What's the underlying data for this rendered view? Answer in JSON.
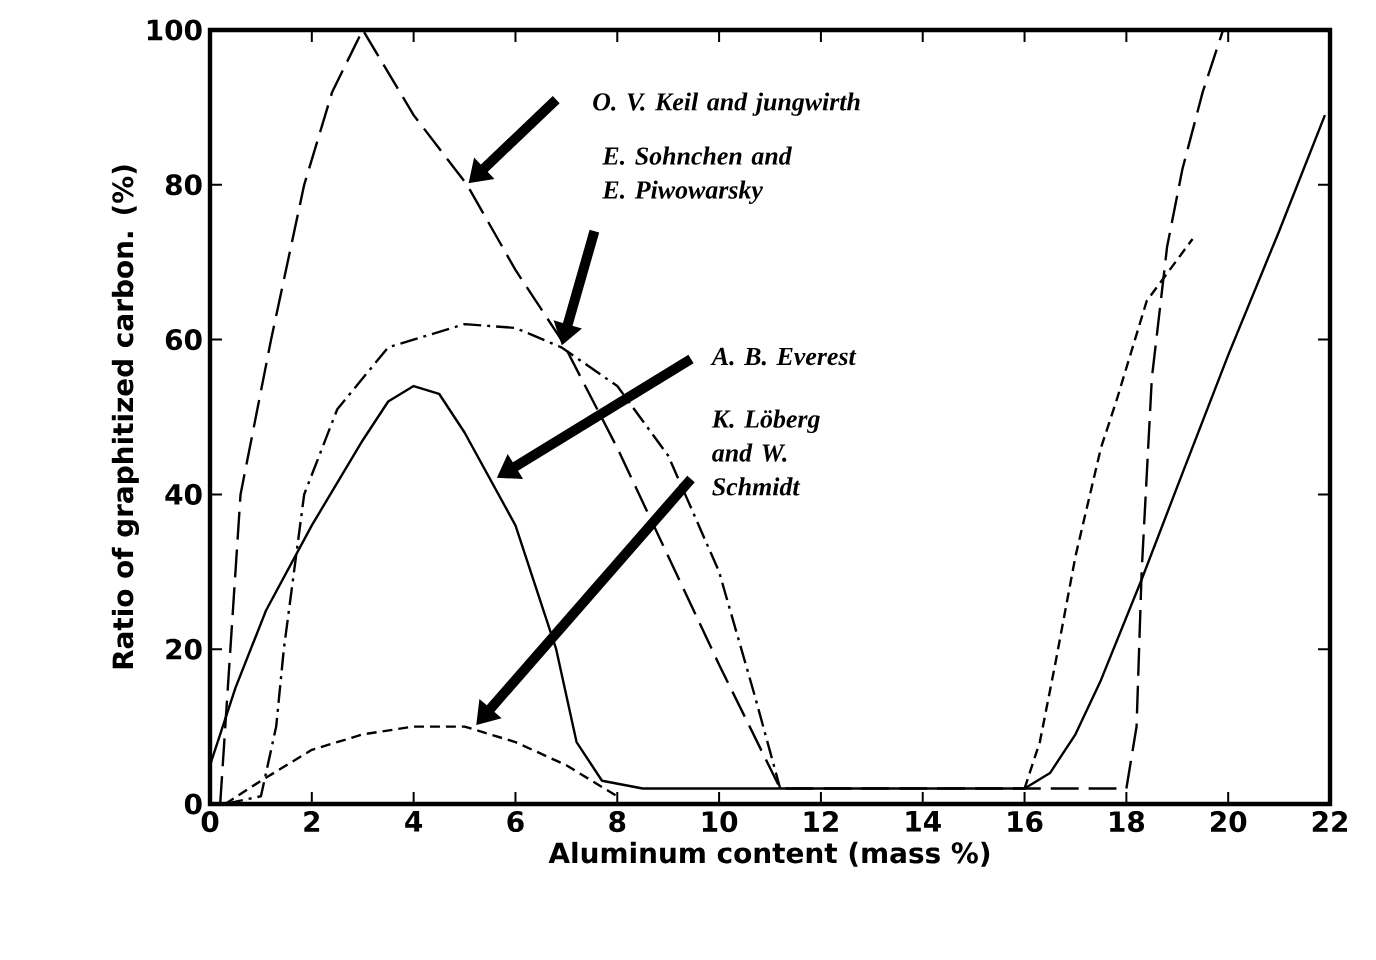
{
  "chart_data": {
    "type": "line",
    "xlabel": "Aluminum content  (mass  %)",
    "ylabel": "Ratio of graphitized carbon.  (%)",
    "xlim": [
      0,
      22
    ],
    "ylim": [
      0,
      100
    ],
    "xticks": [
      0,
      2,
      4,
      6,
      8,
      10,
      12,
      14,
      16,
      18,
      20,
      22
    ],
    "yticks": [
      0,
      20,
      40,
      60,
      80,
      100
    ],
    "grid": false,
    "legend": false,
    "annotations": [
      "O. V. Keil and jungwirth",
      "E. Sohnchen and E. Piwowarsky",
      "A. B. Everest",
      "K. Löberg and W. Schmidt"
    ],
    "series": [
      {
        "color": "#000000",
        "line_style": "dashed",
        "x": [
          0.2,
          0.6,
          1.2,
          1.85,
          2.4,
          3.0,
          4.0,
          5.05,
          6.0,
          6.9,
          8.0,
          9.0,
          10.0,
          11.2,
          14.0,
          16.0,
          18.0,
          18.2,
          18.3,
          18.5,
          18.8,
          19.1,
          19.5,
          19.9
        ],
        "values": [
          0,
          40,
          60,
          80,
          92,
          100,
          89,
          80,
          69,
          60,
          46,
          32,
          18,
          2,
          2,
          2,
          2,
          10,
          30,
          55,
          72,
          82,
          92,
          100
        ]
      },
      {
        "color": "#000000",
        "line_style": "dashdot",
        "x": [
          0.3,
          1.0,
          1.3,
          1.45,
          1.85,
          2.5,
          3.5,
          5.0,
          6.0,
          6.9,
          8.0,
          9.0,
          10.0,
          10.7,
          11.2
        ],
        "values": [
          0,
          1,
          10,
          20,
          40,
          51,
          59,
          62,
          61.5,
          59,
          54,
          45,
          30,
          14,
          2
        ]
      },
      {
        "color": "#000000",
        "line_style": "solid",
        "x": [
          0,
          0.5,
          1.1,
          2.0,
          3.0,
          3.5,
          4.0,
          4.5,
          5.0,
          6.0,
          6.8,
          7.2,
          7.7,
          8.5,
          11.0,
          16.0,
          16.5,
          17.0,
          17.5,
          18.3,
          19.0,
          20.0,
          21.0,
          21.9
        ],
        "values": [
          5,
          15,
          25,
          36,
          47,
          52,
          54,
          53,
          48,
          36,
          20,
          8,
          3,
          2,
          2,
          2,
          4,
          9,
          16,
          29,
          41,
          58,
          74,
          89
        ]
      },
      {
        "color": "#000000",
        "line_style": "dotted",
        "x": [
          0.3,
          1.0,
          2.0,
          3.0,
          4.0,
          5.0,
          6.0,
          7.0,
          8.0,
          12.0,
          16.0,
          16.3,
          16.6,
          17.0,
          17.5,
          17.8,
          18.4,
          19.3
        ],
        "values": [
          0,
          3,
          7,
          9,
          10,
          10,
          8,
          5,
          1,
          null,
          2,
          8,
          18,
          32,
          46,
          52,
          65,
          73
        ]
      }
    ]
  }
}
